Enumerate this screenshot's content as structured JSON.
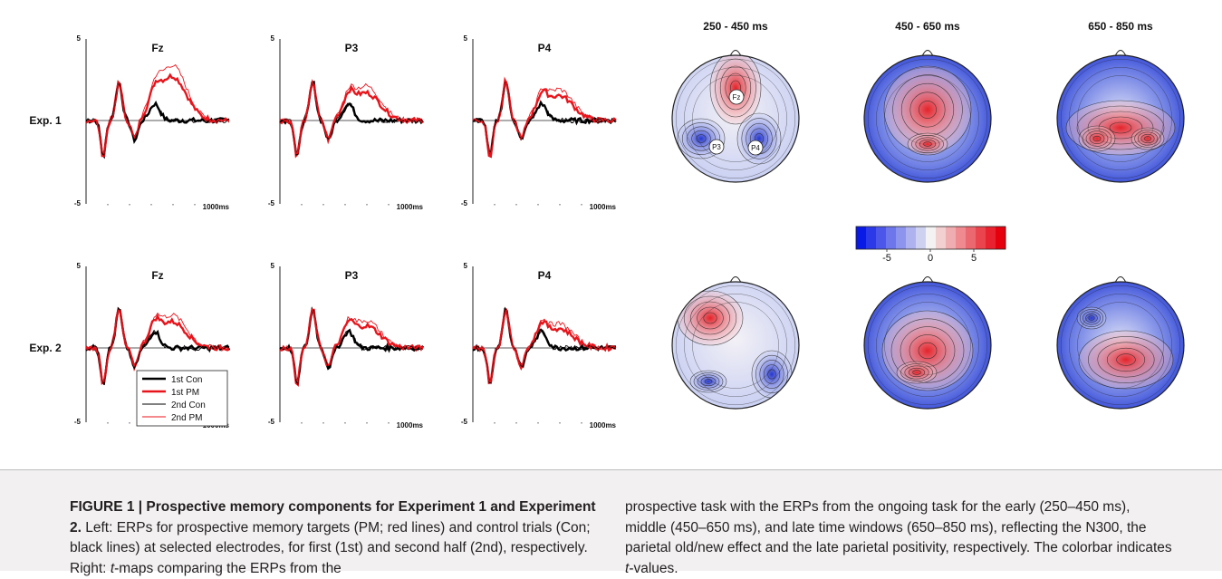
{
  "figure": {
    "experiments": [
      {
        "label": "Exp. 1",
        "panels": [
          {
            "electrode": "Fz"
          },
          {
            "electrode": "P3"
          },
          {
            "electrode": "P4"
          }
        ]
      },
      {
        "label": "Exp. 2",
        "panels": [
          {
            "electrode": "Fz"
          },
          {
            "electrode": "P3"
          },
          {
            "electrode": "P4"
          }
        ]
      }
    ],
    "axis": {
      "ymax_label": "5",
      "ymin_label": "-5",
      "xend_label": "1000ms"
    },
    "legend": [
      {
        "label": "1st Con",
        "color": "#000000",
        "weight": "thick"
      },
      {
        "label": "1st PM",
        "color": "#e8141b",
        "weight": "thick"
      },
      {
        "label": "2nd Con",
        "color": "#000000",
        "weight": "thin"
      },
      {
        "label": "2nd PM",
        "color": "#e8141b",
        "weight": "thin"
      }
    ],
    "time_windows": [
      "250 - 450 ms",
      "450 - 650 ms",
      "650 - 850 ms"
    ],
    "electrode_markers": [
      "Fz",
      "P3",
      "P4"
    ],
    "colorbar": {
      "ticks": [
        "-5",
        "0",
        "5"
      ]
    },
    "colors": {
      "red": "#e8141b",
      "black": "#000000",
      "neg": "#2b3fd8",
      "pos": "#e8202a"
    }
  },
  "caption": {
    "title": "FIGURE 1 | Prospective memory components for Experiment 1 and Experiment 2.",
    "left_a": " Left: ERPs for prospective memory targets (PM; red lines) and control trials (Con; black lines) at selected electrodes, for first (1st) and second half (2nd), respectively. Right: ",
    "t_italic": "t",
    "left_b": "-maps comparing the ERPs from the",
    "right_a": "prospective task with the ERPs from the ongoing task for the early (250–450 ms), middle (450–650 ms), and late time windows (650–850 ms), reflecting the N300, the parietal old/new effect and the late parietal positivity, respectively. The colorbar indicates ",
    "t_italic2": "t",
    "right_b": "-values."
  }
}
